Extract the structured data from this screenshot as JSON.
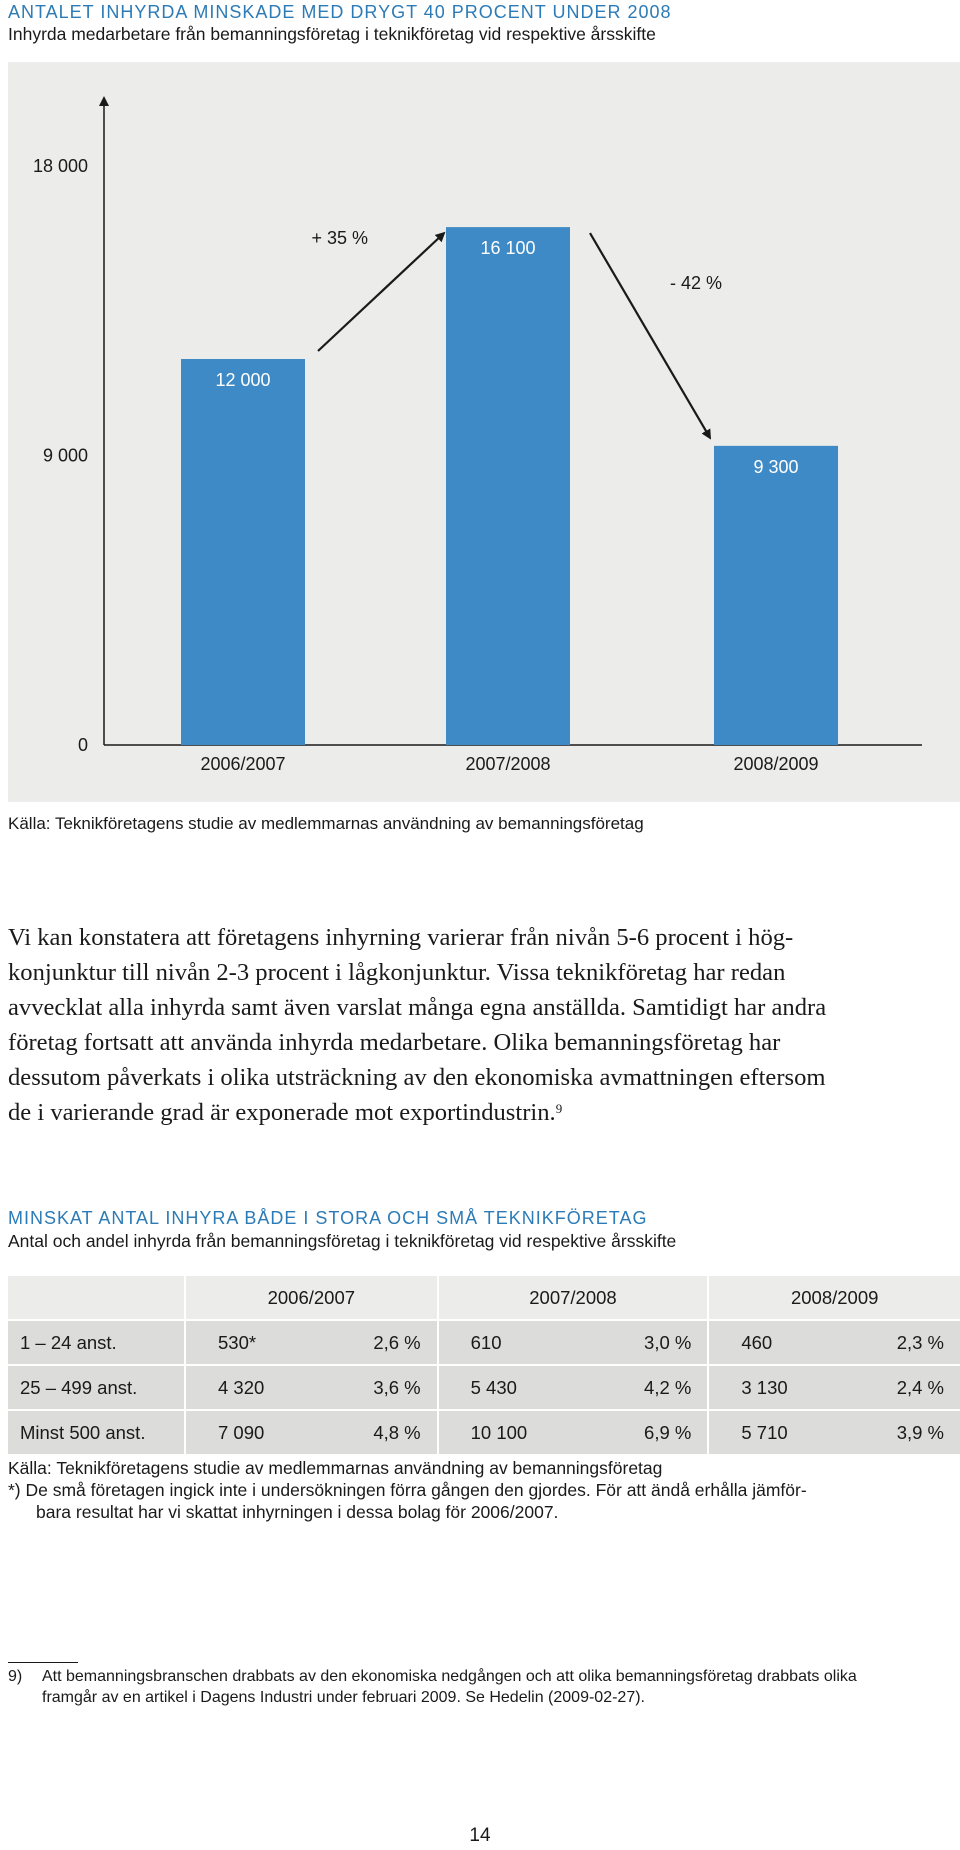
{
  "section1": {
    "heading": "ANTALET INHYRDA MINSKADE MED DRYGT 40 PROCENT UNDER 2008",
    "subheading": "Inhyrda medarbetare från bemanningsföretag i teknikföretag vid respektive årsskifte",
    "source": "Källa: Teknikföretagens studie av medlemmarnas användning av bemanningsföretag"
  },
  "chart_data": {
    "type": "bar",
    "title": "ANTALET INHYRDA MINSKADE MED DRYGT 40 PROCENT UNDER 2008",
    "subtitle": "Inhyrda medarbetare från bemanningsföretag i teknikföretag vid respektive årsskifte",
    "categories": [
      "2006/2007",
      "2007/2008",
      "2008/2009"
    ],
    "values": [
      12000,
      16100,
      9300
    ],
    "value_labels": [
      "12 000",
      "16 100",
      "9 300"
    ],
    "ylim": [
      0,
      18000
    ],
    "yticks": [
      0,
      9000,
      18000
    ],
    "ytick_labels": [
      "0",
      "9 000",
      "18 000"
    ],
    "annotations": [
      {
        "text": "+ 35 %",
        "from": "2006/2007",
        "to": "2007/2008"
      },
      {
        "text": "- 42 %",
        "from": "2007/2008",
        "to": "2008/2009"
      }
    ],
    "grid": false,
    "colors": {
      "bar": "#3d8ac6",
      "panel": "#ececeb"
    }
  },
  "body_html": "Vi kan konstatera att företagens inhyrning varierar från nivån 5-6 procent i hög-<br>konjunktur till nivån 2-3 procent i lågkonjunktur. Vissa teknikföretag har redan<br>avvecklat alla inhyrda samt även varslat många egna anställda. Samtidigt har andra<br>företag fortsatt att använda inhyrda medarbetare. Olika bemanningsföretag har<br>dessutom påverkats i olika utsträckning av den ekonomiska avmattningen eftersom<br>de i varierande grad är exponerade mot exportindustrin.<sup>9</sup>",
  "section2": {
    "heading": "MINSKAT ANTAL INHYRA BÅDE I STORA OCH SMÅ TEKNIKFÖRETAG",
    "subheading": "Antal och andel inhyrda från bemanningsföretag i teknikföretag vid respektive årsskifte",
    "table": {
      "years": [
        "2006/2007",
        "2007/2008",
        "2008/2009"
      ],
      "rows": [
        {
          "label": "1 – 24 anst.",
          "cells": [
            [
              "530*",
              "2,6 %"
            ],
            [
              "610",
              "3,0 %"
            ],
            [
              "460",
              "2,3 %"
            ]
          ]
        },
        {
          "label": "25 – 499 anst.",
          "cells": [
            [
              "4 320",
              "3,6 %"
            ],
            [
              "5 430",
              "4,2 %"
            ],
            [
              "3 130",
              "2,4 %"
            ]
          ]
        },
        {
          "label": "Minst 500 anst.",
          "cells": [
            [
              "7 090",
              "4,8 %"
            ],
            [
              "10 100",
              "6,9 %"
            ],
            [
              "5 710",
              "3,9 %"
            ]
          ]
        }
      ]
    },
    "source": "Källa: Teknikföretagens studie av medlemmarnas användning av bemanningsföretag",
    "note_line1": "*)  De små företagen ingick inte i undersökningen förra gången den gjordes. För att ändå erhålla jämför-",
    "note_line2": "bara resultat har vi skattat inhyrningen i dessa bolag för 2006/2007."
  },
  "footnote": {
    "marker": "9)",
    "line1": "Att bemanningsbranschen drabbats av den ekonomiska nedgången och att olika bemanningsföretag drabbats olika",
    "line2": "framgår av en artikel i Dagens Industri under februari 2009. Se Hedelin (2009-02-27)."
  },
  "page_number": "14"
}
